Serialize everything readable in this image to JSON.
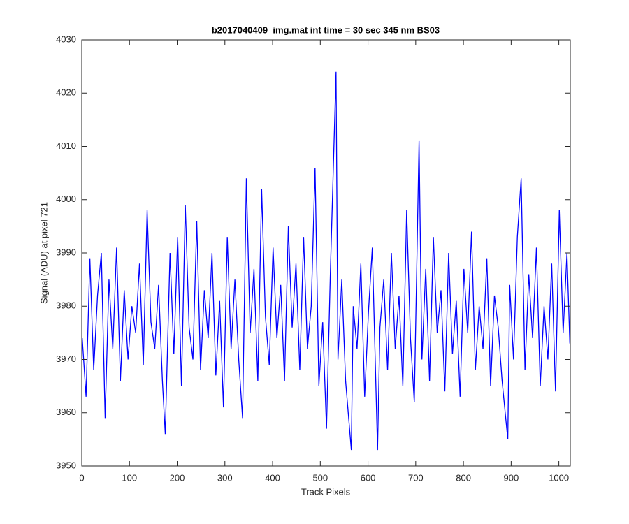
{
  "chart_data": {
    "type": "line",
    "title": "b2017040409_img.mat int time = 30 sec  345 nm BS03",
    "x_label": "Track Pixels",
    "y_label": "Signal (ADU) at pixel 721",
    "xlim": [
      0,
      1024
    ],
    "ylim": [
      3950,
      4030
    ],
    "xticks": [
      0,
      100,
      200,
      300,
      400,
      500,
      600,
      700,
      800,
      900,
      1000
    ],
    "yticks": [
      3950,
      3960,
      3970,
      3980,
      3990,
      4000,
      4010,
      4020,
      4030
    ],
    "x": [
      1,
      9,
      17,
      25,
      33,
      41,
      49,
      57,
      65,
      73,
      81,
      89,
      97,
      105,
      113,
      121,
      129,
      137,
      145,
      153,
      161,
      169,
      175,
      185,
      193,
      201,
      209,
      217,
      225,
      233,
      241,
      249,
      257,
      265,
      273,
      281,
      289,
      297,
      305,
      313,
      321,
      329,
      337,
      345,
      353,
      361,
      369,
      377,
      385,
      393,
      401,
      409,
      417,
      425,
      433,
      441,
      449,
      457,
      465,
      473,
      481,
      489,
      497,
      505,
      513,
      521,
      533,
      537,
      545,
      553,
      565,
      569,
      577,
      585,
      593,
      601,
      609,
      620,
      625,
      633,
      641,
      649,
      657,
      665,
      673,
      681,
      689,
      697,
      707,
      713,
      721,
      729,
      737,
      745,
      753,
      761,
      769,
      777,
      785,
      793,
      801,
      809,
      817,
      825,
      833,
      841,
      849,
      857,
      865,
      873,
      881,
      893,
      897,
      905,
      913,
      921,
      929,
      937,
      945,
      953,
      961,
      969,
      977,
      985,
      993,
      1001,
      1009,
      1017,
      1023
    ],
    "series": [
      {
        "color": "#0000ff",
        "values": [
          3974,
          3963,
          3989,
          3968,
          3982,
          3990,
          3959,
          3985,
          3972,
          3991,
          3966,
          3983,
          3970,
          3980,
          3975,
          3988,
          3969,
          3998,
          3977,
          3972,
          3984,
          3966,
          3956,
          3990,
          3971,
          3993,
          3965,
          3999,
          3976,
          3970,
          3996,
          3968,
          3983,
          3974,
          3990,
          3967,
          3981,
          3961,
          3993,
          3972,
          3985,
          3970,
          3959,
          4004,
          3975,
          3987,
          3966,
          4002,
          3978,
          3969,
          3991,
          3974,
          3984,
          3966,
          3995,
          3976,
          3988,
          3968,
          3993,
          3972,
          3980,
          4006,
          3965,
          3977,
          3957,
          3986,
          4024,
          3970,
          3985,
          3966,
          3953,
          3980,
          3972,
          3988,
          3963,
          3979,
          3991,
          3953,
          3976,
          3985,
          3968,
          3990,
          3972,
          3982,
          3965,
          3998,
          3974,
          3962,
          4011,
          3970,
          3987,
          3966,
          3993,
          3975,
          3983,
          3964,
          3990,
          3971,
          3981,
          3963,
          3987,
          3975,
          3994,
          3968,
          3980,
          3972,
          3989,
          3965,
          3982,
          3976,
          3966,
          3955,
          3984,
          3970,
          3993,
          4004,
          3968,
          3986,
          3974,
          3991,
          3965,
          3980,
          3970,
          3988,
          3964,
          3998,
          3975,
          3990,
          3973
        ]
      }
    ]
  }
}
